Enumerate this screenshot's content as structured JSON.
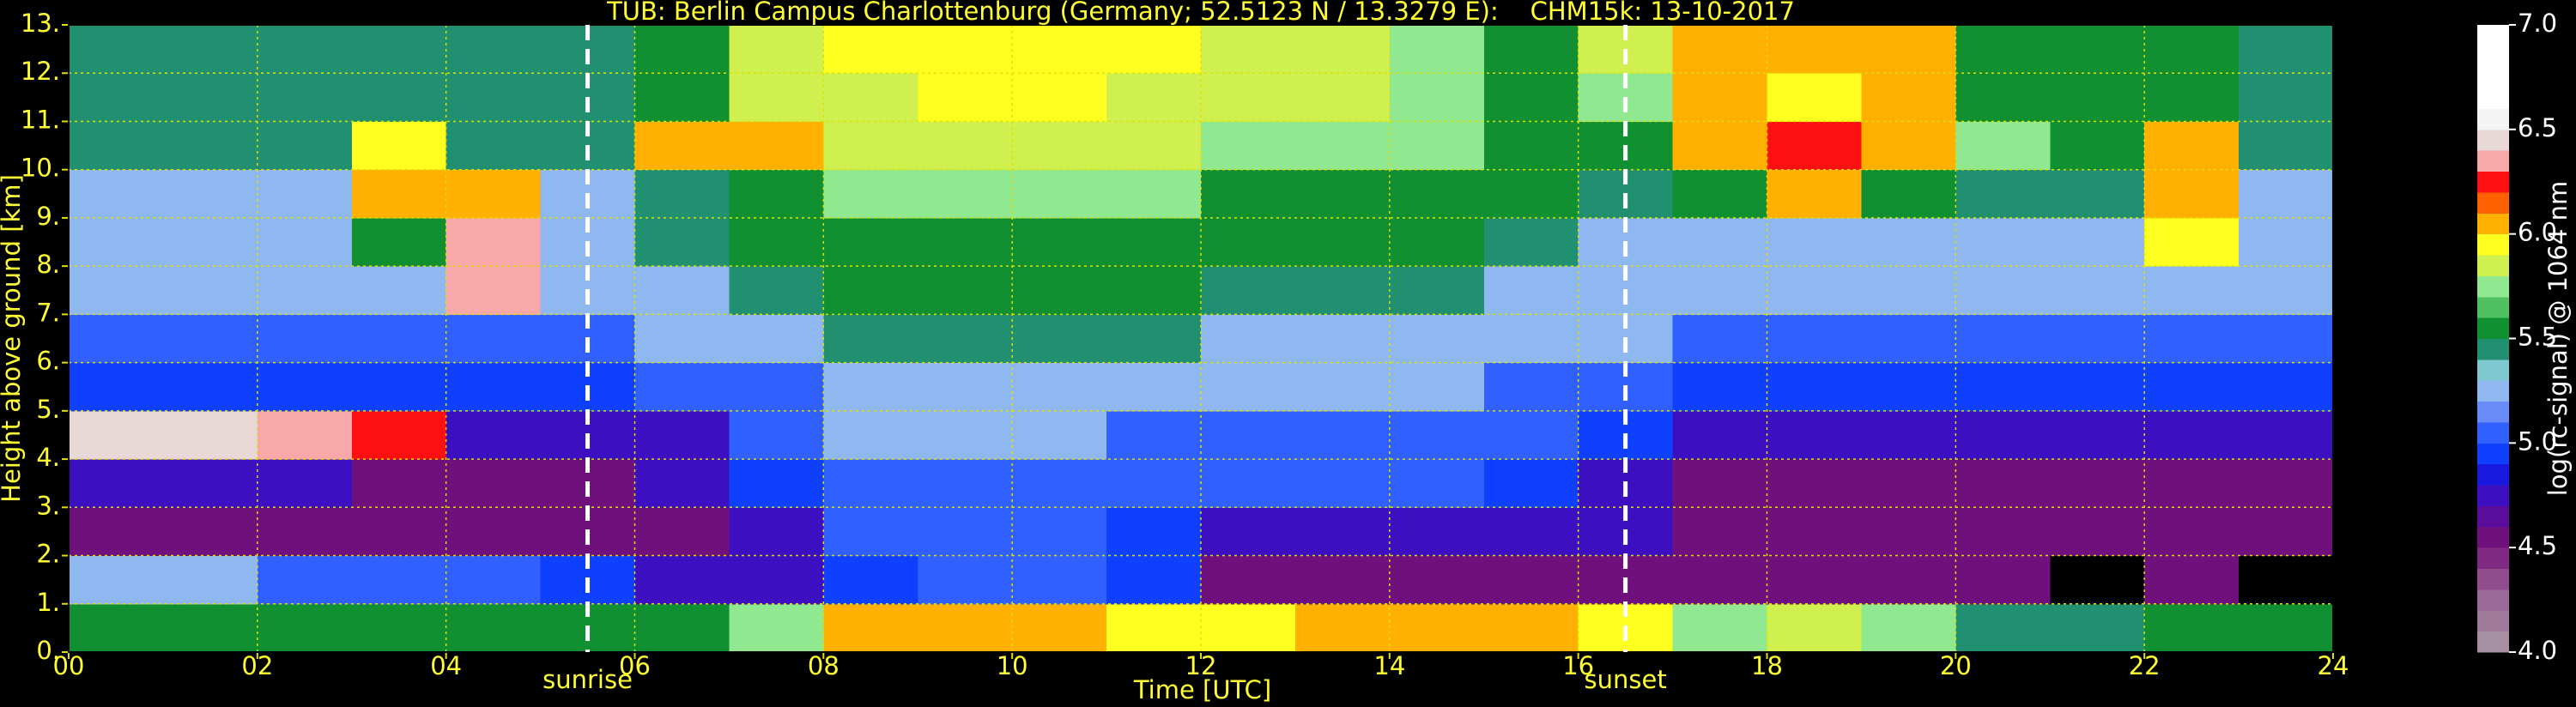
{
  "chart_data": {
    "type": "heatmap",
    "title": "TUB: Berlin Campus Charlottenburg (Germany; 52.5123 N / 13.3279 E):    CHM15k: 13-10-2017",
    "xlabel": "Time [UTC]",
    "ylabel": "Height above ground [km]",
    "colorbar_label": "log(rc-signal) @ 1064 nm",
    "x": [
      0.5,
      1.5,
      2.5,
      3.5,
      4.5,
      5.5,
      6.5,
      7.5,
      8.5,
      9.5,
      10.5,
      11.5,
      12.5,
      13.5,
      14.5,
      15.5,
      16.5,
      17.5,
      18.5,
      19.5,
      20.5,
      21.5,
      22.5,
      23.5
    ],
    "y": [
      0.5,
      1.5,
      2.5,
      3.5,
      4.5,
      5.5,
      6.5,
      7.5,
      8.5,
      9.5,
      10.5,
      11.5,
      12.5
    ],
    "z": [
      [
        5.6,
        5.6,
        5.6,
        5.6,
        5.6,
        5.5,
        5.5,
        5.7,
        6.0,
        6.0,
        6.0,
        5.9,
        5.9,
        6.0,
        6.0,
        6.0,
        5.9,
        5.7,
        5.8,
        5.7,
        5.4,
        5.4,
        5.5,
        5.6
      ],
      [
        5.2,
        5.2,
        5.1,
        5.1,
        5.0,
        4.9,
        4.8,
        4.8,
        4.9,
        5.0,
        5.0,
        4.9,
        4.5,
        4.5,
        4.5,
        4.5,
        4.6,
        4.6,
        4.6,
        4.6,
        4.6,
        3.8,
        4.6,
        3.8
      ],
      [
        4.5,
        4.5,
        4.5,
        4.5,
        4.5,
        4.5,
        4.6,
        4.8,
        5.0,
        5.0,
        5.0,
        4.9,
        4.8,
        4.8,
        4.8,
        4.8,
        4.7,
        4.5,
        4.5,
        4.5,
        4.5,
        4.5,
        4.5,
        4.5
      ],
      [
        4.8,
        4.7,
        4.7,
        4.6,
        4.6,
        4.6,
        4.7,
        4.9,
        5.1,
        5.1,
        5.1,
        5.0,
        5.0,
        5.0,
        5.0,
        4.9,
        4.8,
        4.6,
        4.6,
        4.6,
        4.6,
        4.6,
        4.6,
        4.6
      ],
      [
        6.4,
        6.4,
        6.3,
        6.2,
        4.7,
        4.7,
        4.8,
        5.0,
        5.2,
        5.2,
        5.2,
        5.1,
        5.1,
        5.1,
        5.1,
        5.0,
        4.9,
        4.7,
        4.7,
        4.7,
        4.7,
        4.7,
        4.7,
        4.7
      ],
      [
        4.9,
        4.9,
        4.9,
        4.9,
        4.9,
        4.9,
        5.0,
        5.1,
        5.3,
        5.3,
        5.3,
        5.2,
        5.2,
        5.2,
        5.2,
        5.1,
        5.0,
        4.9,
        4.9,
        4.9,
        4.9,
        4.9,
        4.9,
        4.9
      ],
      [
        5.1,
        5.1,
        5.1,
        5.1,
        5.1,
        5.1,
        5.2,
        5.3,
        5.4,
        5.4,
        5.4,
        5.4,
        5.3,
        5.3,
        5.3,
        5.2,
        5.2,
        5.1,
        5.1,
        5.1,
        5.1,
        5.1,
        5.1,
        5.1
      ],
      [
        5.2,
        5.2,
        5.2,
        5.2,
        6.3,
        5.2,
        5.3,
        5.4,
        5.5,
        5.5,
        5.5,
        5.5,
        5.4,
        5.4,
        5.4,
        5.3,
        5.3,
        5.2,
        5.2,
        5.2,
        5.2,
        5.2,
        5.2,
        5.2
      ],
      [
        5.3,
        5.3,
        5.3,
        5.6,
        6.3,
        5.3,
        5.4,
        5.5,
        5.6,
        5.6,
        5.6,
        5.6,
        5.5,
        5.5,
        5.5,
        5.4,
        5.3,
        5.3,
        5.3,
        5.3,
        5.3,
        5.3,
        5.9,
        5.3
      ],
      [
        5.3,
        5.3,
        5.3,
        6.1,
        6.0,
        5.3,
        5.4,
        5.6,
        5.7,
        5.7,
        5.7,
        5.7,
        5.6,
        5.6,
        5.6,
        5.5,
        5.4,
        5.5,
        6.1,
        5.6,
        5.4,
        5.4,
        6.1,
        5.3
      ],
      [
        5.4,
        5.4,
        5.4,
        5.9,
        5.4,
        5.4,
        6.1,
        6.0,
        5.8,
        5.8,
        5.8,
        5.8,
        5.7,
        5.7,
        5.7,
        5.6,
        5.5,
        6.0,
        6.2,
        6.1,
        5.7,
        5.5,
        6.0,
        5.4
      ],
      [
        5.4,
        5.4,
        5.4,
        5.4,
        5.4,
        5.4,
        5.6,
        5.8,
        5.8,
        5.9,
        5.9,
        5.8,
        5.8,
        5.8,
        5.7,
        5.6,
        5.7,
        6.1,
        5.9,
        6.1,
        5.6,
        5.5,
        5.6,
        5.4
      ],
      [
        5.4,
        5.4,
        5.4,
        5.4,
        5.4,
        5.4,
        5.6,
        5.8,
        5.9,
        5.9,
        5.9,
        5.9,
        5.8,
        5.8,
        5.7,
        5.6,
        5.8,
        6.1,
        6.0,
        6.1,
        5.5,
        5.5,
        5.5,
        5.4
      ]
    ],
    "xlim": [
      0,
      24
    ],
    "xticks": [
      {
        "value": 0,
        "label": "00"
      },
      {
        "value": 2,
        "label": "02"
      },
      {
        "value": 4,
        "label": "04"
      },
      {
        "value": 6,
        "label": "06"
      },
      {
        "value": 8,
        "label": "08"
      },
      {
        "value": 10,
        "label": "10"
      },
      {
        "value": 12,
        "label": "12"
      },
      {
        "value": 14,
        "label": "14"
      },
      {
        "value": 16,
        "label": "16"
      },
      {
        "value": 18,
        "label": "18"
      },
      {
        "value": 20,
        "label": "20"
      },
      {
        "value": 22,
        "label": "22"
      },
      {
        "value": 24,
        "label": "24"
      }
    ],
    "ylim": [
      0,
      13
    ],
    "yticks": [
      {
        "value": 0,
        "label": "0."
      },
      {
        "value": 1,
        "label": "1."
      },
      {
        "value": 2,
        "label": "2."
      },
      {
        "value": 3,
        "label": "3."
      },
      {
        "value": 4,
        "label": "4."
      },
      {
        "value": 5,
        "label": "5."
      },
      {
        "value": 6,
        "label": "6."
      },
      {
        "value": 7,
        "label": "7."
      },
      {
        "value": 8,
        "label": "8."
      },
      {
        "value": 9,
        "label": "9."
      },
      {
        "value": 10,
        "label": "10."
      },
      {
        "value": 11,
        "label": "11."
      },
      {
        "value": 12,
        "label": "12."
      },
      {
        "value": 13,
        "label": "13."
      }
    ],
    "clim": [
      4,
      7
    ],
    "cticks": [
      {
        "value": 4,
        "label": "4.0"
      },
      4.5,
      {
        "value": 5,
        "label": "5.0"
      },
      5.5,
      {
        "value": 6,
        "label": "6.0"
      },
      6.5,
      {
        "value": 7,
        "label": "7.0"
      }
    ],
    "colorscale": [
      "#a58fa0",
      "#a07a9a",
      "#9a6a98",
      "#904c8c",
      "#802a84",
      "#70107c",
      "#5a0c9a",
      "#3c10c0",
      "#1818e0",
      "#1040ff",
      "#3060ff",
      "#6a8cf8",
      "#90b8f0",
      "#80c8d0",
      "#209070",
      "#109030",
      "#50c060",
      "#90e890",
      "#d0f050",
      "#ffff20",
      "#ffb000",
      "#ff6000",
      "#ff1010",
      "#f8a8a8",
      "#e8d8d8",
      "#f4f4f4",
      "#ffffff",
      "#ffffff",
      "#ffffff",
      "#ffffff"
    ],
    "under_color": "#000000",
    "grid": true,
    "grid_color": "#e0e000",
    "text_color": "#ffff33",
    "annotations": [
      {
        "text": "sunrise",
        "x": 5.5
      },
      {
        "text": "sunset",
        "x": 16.5
      }
    ]
  }
}
